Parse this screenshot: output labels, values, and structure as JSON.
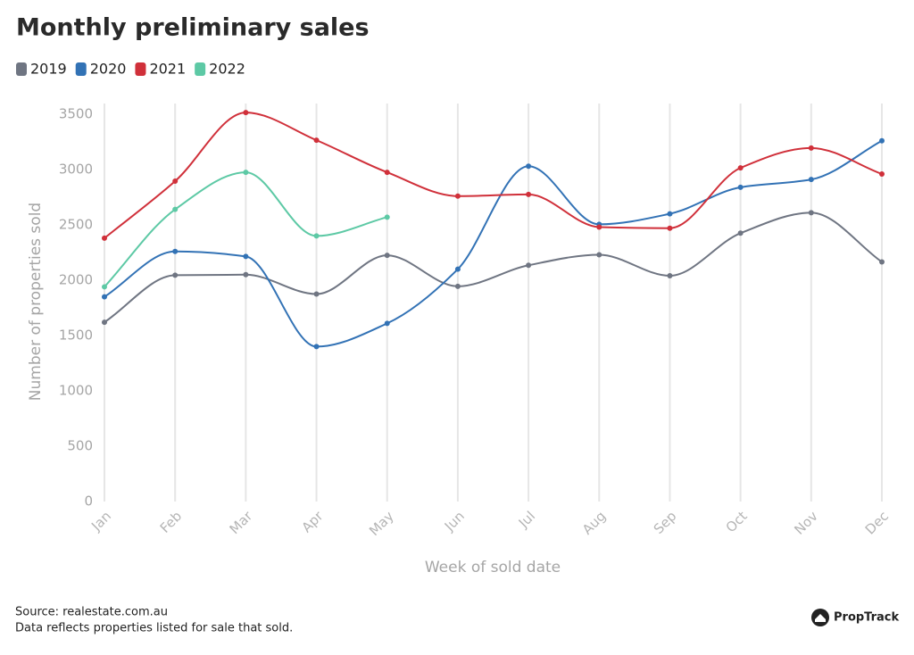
{
  "chart_data": {
    "type": "line",
    "title": "Monthly preliminary sales",
    "xlabel": "Week of sold date",
    "ylabel": "Number of properties sold",
    "categories": [
      "Jan",
      "Feb",
      "Mar",
      "Apr",
      "May",
      "Jun",
      "Jul",
      "Aug",
      "Sep",
      "Oct",
      "Nov",
      "Dec"
    ],
    "series": [
      {
        "name": "2019",
        "color": "#6f7582",
        "values": [
          1620,
          2045,
          2050,
          1875,
          2225,
          1945,
          2135,
          2230,
          2040,
          2425,
          2610,
          2165
        ]
      },
      {
        "name": "2020",
        "color": "#3272b5",
        "values": [
          1850,
          2260,
          2215,
          1400,
          1610,
          2100,
          3030,
          2505,
          2600,
          2840,
          2910,
          3260
        ]
      },
      {
        "name": "2021",
        "color": "#d0303a",
        "values": [
          2380,
          2895,
          3515,
          3265,
          2975,
          2760,
          2775,
          2480,
          2470,
          3015,
          3195,
          2960
        ]
      },
      {
        "name": "2022",
        "color": "#5dc9a5",
        "values": [
          1940,
          2640,
          2975,
          2400,
          2570,
          null,
          null,
          null,
          null,
          null,
          null,
          null
        ]
      }
    ],
    "ylim": [
      0,
      3500
    ],
    "yticks": [
      0,
      500,
      1000,
      1500,
      2000,
      2500,
      3000,
      3500
    ],
    "grid": "x",
    "legend": "top-left",
    "source": "Source: realestate.com.au",
    "note": "Data reflects properties listed for sale that sold.",
    "brand": "PropTrack"
  }
}
